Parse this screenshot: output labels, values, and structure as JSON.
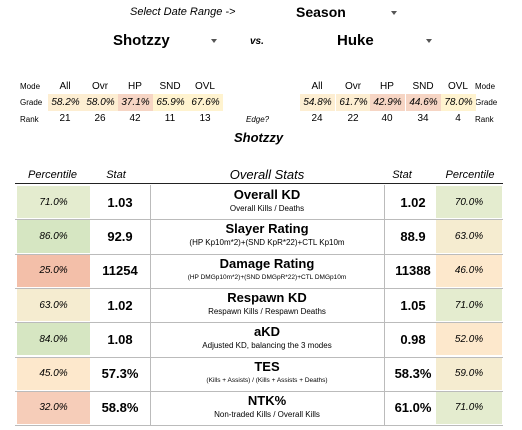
{
  "header": {
    "date_range_label": "Select Date Range ->",
    "season": "Season",
    "player1": "Shotzzy",
    "vs": "vs.",
    "player2": "Huke"
  },
  "grades": {
    "row_labels": {
      "mode": "Mode",
      "grade": "Grade",
      "rank": "Rank"
    },
    "modes": [
      "All",
      "Ovr",
      "HP",
      "SND",
      "OVL"
    ],
    "left": {
      "grades": [
        "58.2%",
        "58.0%",
        "37.1%",
        "65.9%",
        "67.6%"
      ],
      "ranks": [
        "21",
        "26",
        "42",
        "11",
        "13"
      ],
      "colors": [
        "#fdeed2",
        "#fdeed2",
        "#f6d5c4",
        "#fff3cf",
        "#fff3cf"
      ]
    },
    "right": {
      "grades": [
        "54.8%",
        "61.7%",
        "42.9%",
        "44.6%",
        "78.0%"
      ],
      "ranks": [
        "24",
        "22",
        "40",
        "34",
        "4"
      ],
      "colors": [
        "#fdeed2",
        "#fdeed2",
        "#f6d5c4",
        "#f6d5c4",
        "#fff3cf"
      ]
    },
    "edge_label": "Edge?",
    "edge_player": "Shotzzy"
  },
  "table": {
    "headers": {
      "percentile": "Percentile",
      "stat": "Stat",
      "overall": "Overall Stats"
    },
    "rows": [
      {
        "title": "Overall KD",
        "sub": "Overall Kills / Deaths",
        "l_pct": "71.0%",
        "l_stat": "1.03",
        "r_stat": "1.02",
        "r_pct": "70.0%",
        "l_color": "#e4eccf",
        "r_color": "#e4eccf"
      },
      {
        "title": "Slayer Rating",
        "sub": "(HP Kp10m*2)+(SND KpR*22)+CTL Kp10m",
        "l_pct": "86.0%",
        "l_stat": "92.9",
        "r_stat": "88.9",
        "r_pct": "63.0%",
        "l_color": "#d6e6c2",
        "r_color": "#f5ecd0"
      },
      {
        "title": "Damage Rating",
        "sub": "(HP DMGp10m*2)+(SND DMGpR*22)+CTL DMGp10m",
        "l_pct": "25.0%",
        "l_stat": "11254",
        "r_stat": "11388",
        "r_pct": "46.0%",
        "l_color": "#f3bfa9",
        "r_color": "#fde8cc"
      },
      {
        "title": "Respawn KD",
        "sub": "Respawn Kills / Respawn Deaths",
        "l_pct": "63.0%",
        "l_stat": "1.02",
        "r_stat": "1.05",
        "r_pct": "71.0%",
        "l_color": "#f5ecd0",
        "r_color": "#e4eccf"
      },
      {
        "title": "aKD",
        "sub": "Adjusted KD, balancing the 3 modes",
        "l_pct": "84.0%",
        "l_stat": "1.08",
        "r_stat": "0.98",
        "r_pct": "52.0%",
        "l_color": "#d6e6c2",
        "r_color": "#fde8cc"
      },
      {
        "title": "TES",
        "sub": "(Kills + Assists) / (Kills + Assists + Deaths)",
        "l_pct": "45.0%",
        "l_stat": "57.3%",
        "r_stat": "58.3%",
        "r_pct": "59.0%",
        "l_color": "#fde8cc",
        "r_color": "#f5ecd0"
      },
      {
        "title": "NTK%",
        "sub": "Non-traded Kills / Overall Kills",
        "l_pct": "32.0%",
        "l_stat": "58.8%",
        "r_stat": "61.0%",
        "r_pct": "71.0%",
        "l_color": "#f6cdb9",
        "r_color": "#e4eccf"
      }
    ]
  }
}
